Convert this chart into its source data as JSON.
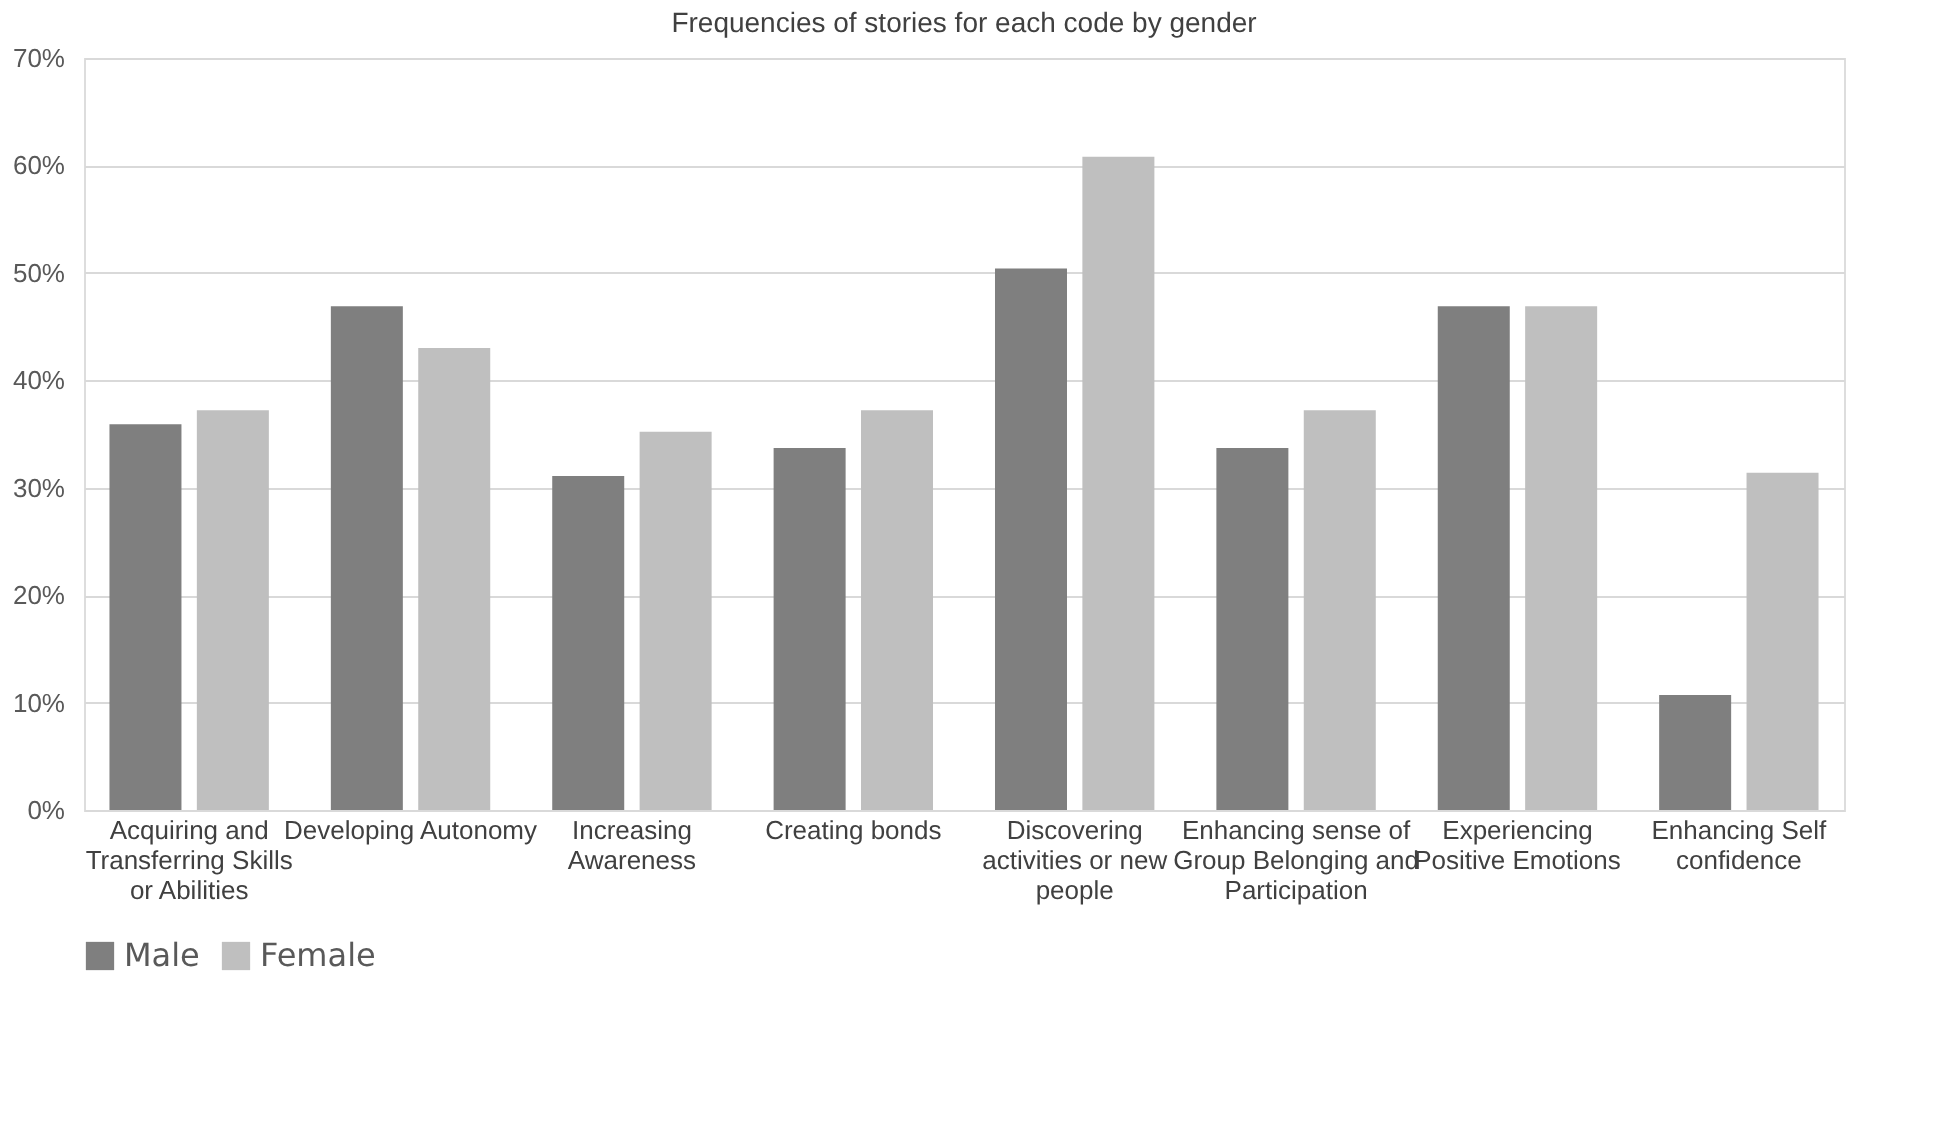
{
  "chart_data": {
    "type": "bar",
    "title": "Frequencies of stories for each code by gender",
    "categories": [
      "Acquiring and Transferring Skills or Abilities",
      "Developing Autonomy",
      "Increasing Awareness",
      "Creating bonds",
      "Discovering activities or new people",
      "Enhancing sense of Group Belonging and Participation",
      "Experiencing Positive Emotions",
      "Enhancing Self confidence"
    ],
    "series": [
      {
        "name": "Male",
        "color": "#7f7f7f",
        "values": [
          35.9,
          46.9,
          31.1,
          33.7,
          50.4,
          33.7,
          46.9,
          10.7
        ]
      },
      {
        "name": "Female",
        "color": "#bfbfbf",
        "values": [
          37.2,
          43.0,
          35.2,
          37.2,
          60.8,
          37.2,
          46.9,
          31.4
        ]
      }
    ],
    "ylim": [
      0,
      70
    ],
    "yticks": [
      {
        "value": 0,
        "label": "0%"
      },
      {
        "value": 10,
        "label": "10%"
      },
      {
        "value": 20,
        "label": "20%"
      },
      {
        "value": 30,
        "label": "30%"
      },
      {
        "value": 40,
        "label": "40%"
      },
      {
        "value": 50,
        "label": "50%"
      },
      {
        "value": 60,
        "label": "60%"
      },
      {
        "value": 70,
        "label": "70%"
      }
    ],
    "grid": "y",
    "legend": "bottom"
  }
}
